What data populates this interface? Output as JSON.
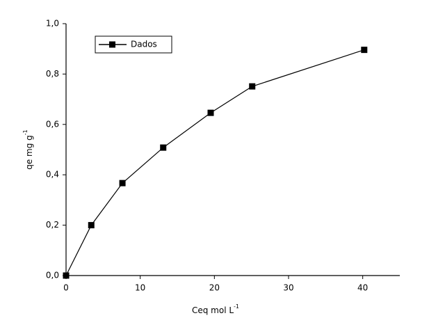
{
  "chart_data": {
    "type": "line",
    "x_label": "Ceq mol L",
    "x_label_sup": "-1",
    "y_label": "qe mg g",
    "y_label_sup": "-1",
    "x": [
      0,
      3.4,
      7.6,
      13.1,
      19.5,
      25.1,
      40.2
    ],
    "series": [
      {
        "name": "Dados",
        "color": "#000000",
        "values": [
          0,
          0.2,
          0.367,
          0.508,
          0.646,
          0.751,
          0.896
        ]
      }
    ],
    "xlim": [
      0,
      45
    ],
    "xticks": [
      0,
      10,
      20,
      30,
      40
    ],
    "ylim": [
      0,
      1.0
    ],
    "yticks": [
      {
        "value": 0,
        "label": "0,0"
      },
      {
        "value": 0.2,
        "label": "0,2"
      },
      {
        "value": 0.4,
        "label": "0,4"
      },
      {
        "value": 0.6,
        "label": "0,6"
      },
      {
        "value": 0.8,
        "label": "0,8"
      },
      {
        "value": 1.0,
        "label": "1,0"
      }
    ],
    "grid": false,
    "legend": "top-left"
  }
}
